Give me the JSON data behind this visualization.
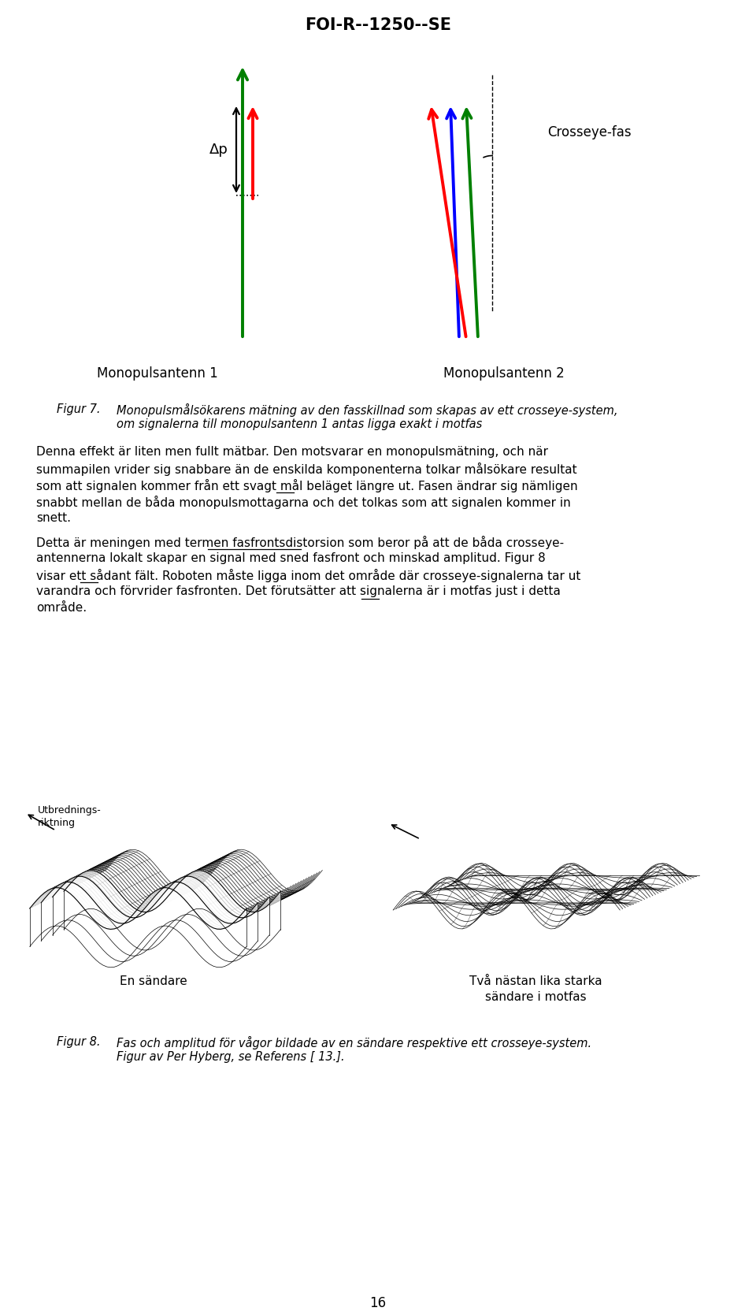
{
  "title": "FOI-R--1250--SE",
  "page_number": "16",
  "background_color": "#ffffff",
  "fig7_caption_label": "Figur 7.",
  "fig7_caption_text": "Monopulsmålsökarens mätning av den fasskillnad som skapas av ett crosseye-system,\nom signalerna till monopulsantenn 1 antas ligga exakt i motfas",
  "fig8_caption_label": "Figur 8.",
  "fig8_caption_text": "Fas och amplitud för vågor bildade av en sändare respektive ett crosseye-system.\nFigur av Per Hyberg, se Referens [ 13.].",
  "body_text_1_lines": [
    "Denna effekt är liten men fullt mätbar. Den motsvarar en monopulsmätning, och när",
    "summapilen vrider sig snabbare än de enskilda komponenterna tolkar målsökare resultat",
    "som att signalen kommer från ett svagt mål beläget längre ut. Fasen ändrar sig nämligen",
    "snabbt mellan de båda monopulsmottagarna och det tolkas som att signalen kommer in",
    "snett."
  ],
  "body_text_2_lines": [
    "Detta är meningen med termen fasfrontsdistorsion som beror på att de båda crosseye-",
    "antennerna lokalt skapar en signal med sned fasfront och minskad amplitud. Figur 8",
    "visar ett sådant fält. Roboten måste ligga inom det område där crosseye-signalerna tar ut",
    "varandra och förvrider fasfronten. Det förutsätter att signalerna är i motfas just i detta",
    "område."
  ],
  "label_mono1": "Monopulsantenn 1",
  "label_mono2": "Monopulsantenn 2",
  "label_crosseye": "Crosseye-fas",
  "label_delta_p": "Δp",
  "label_en_sandare": "En sändare",
  "label_tva_sandare": "Två nästan lika starka\nsändare i motfas",
  "label_utbrednings": "Utbrednings-\nriktning"
}
